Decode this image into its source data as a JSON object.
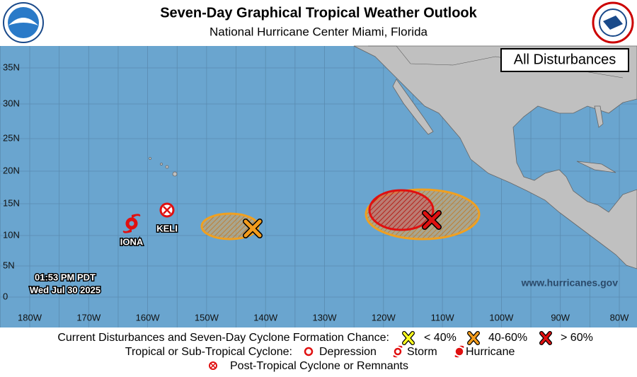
{
  "header": {
    "title": "Seven-Day Graphical Tropical Weather Outlook",
    "subtitle": "National Hurricane Center  Miami, Florida"
  },
  "map": {
    "badge": "All Disturbances",
    "lat_labels": [
      "35N",
      "30N",
      "25N",
      "20N",
      "15N",
      "10N",
      "5N",
      "0"
    ],
    "lon_labels": [
      "180W",
      "170W",
      "160W",
      "150W",
      "140W",
      "130W",
      "120W",
      "110W",
      "100W",
      "90W",
      "80W"
    ],
    "storms": [
      {
        "label": "IONA"
      },
      {
        "label": "KELI"
      }
    ],
    "timestamp": [
      "01:53 PM PDT",
      "Wed Jul 30 2025"
    ],
    "website": "www.hurricanes.gov"
  },
  "legend": {
    "formation_label": "Current Disturbances and Seven-Day Cyclone Formation Chance:",
    "chances": [
      "< 40%",
      "40-60%",
      "> 60%"
    ],
    "cyclone_label": "Tropical or Sub-Tropical Cyclone:",
    "cyclones": [
      "Depression",
      "Storm",
      "Hurricane"
    ],
    "remnants": "Post-Tropical Cyclone or Remnants"
  }
}
